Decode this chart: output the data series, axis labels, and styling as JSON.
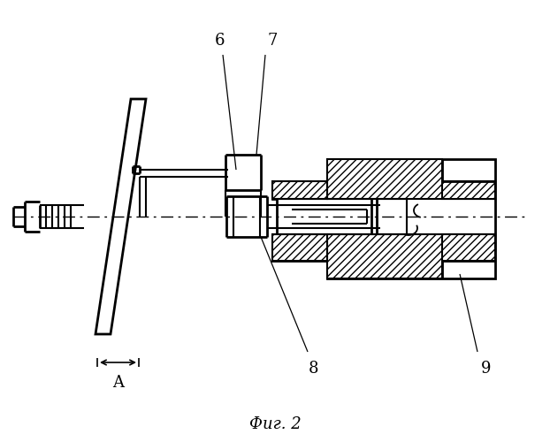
{
  "title": "Фиг. 2",
  "background_color": "#ffffff",
  "label_6": "6",
  "label_7": "7",
  "label_8": "8",
  "label_9": "9",
  "label_A": "A",
  "figsize": [
    6.22,
    5.0
  ],
  "dpi": 100
}
